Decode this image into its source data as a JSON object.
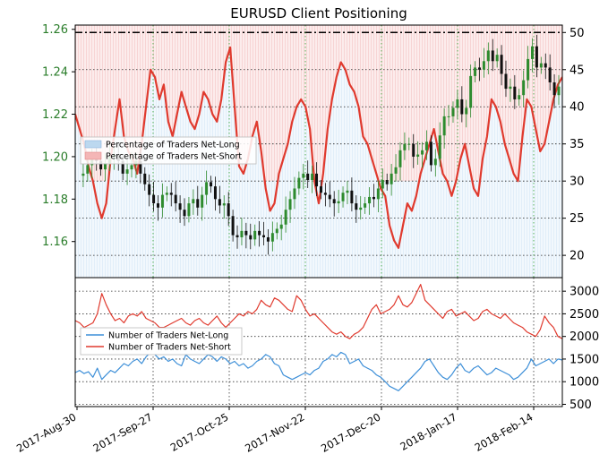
{
  "chart_data": [
    {
      "type": "line",
      "title": "EURUSD Client Positioning",
      "y_left_ticks": [
        "1.16",
        "1.18",
        "1.20",
        "1.22",
        "1.24",
        "1.26"
      ],
      "y_left_values": [
        1.16,
        1.18,
        1.2,
        1.22,
        1.24,
        1.26
      ],
      "ylim_left": [
        1.143,
        1.262
      ],
      "y_right_ticks": [
        "20",
        "25",
        "30",
        "35",
        "40",
        "45",
        "50"
      ],
      "y_right_values": [
        20,
        25,
        30,
        35,
        40,
        45,
        50
      ],
      "ylim_right": [
        17,
        51
      ],
      "x_tick_labels": [
        "2017-Aug-30",
        "2017-Sep-27",
        "2017-Oct-25",
        "2017-Nov-22",
        "2017-Dec-20",
        "2018-Jan-17",
        "2018-Feb-14"
      ],
      "legend": {
        "position": "center-left",
        "entries": [
          {
            "name": "Percentage of Traders Net-Long",
            "color": "#bcd8ef"
          },
          {
            "name": "Percentage of Traders Net-Short",
            "color": "#f4b6b6"
          }
        ]
      },
      "price_candles_approx": [
        1.191,
        1.192,
        1.196,
        1.2,
        1.198,
        1.194,
        1.197,
        1.2,
        1.201,
        1.198,
        1.192,
        1.194,
        1.196,
        1.198,
        1.192,
        1.187,
        1.182,
        1.178,
        1.176,
        1.182,
        1.183,
        1.182,
        1.178,
        1.175,
        1.172,
        1.178,
        1.18,
        1.176,
        1.182,
        1.188,
        1.186,
        1.18,
        1.177,
        1.178,
        1.172,
        1.163,
        1.162,
        1.165,
        1.163,
        1.161,
        1.165,
        1.163,
        1.162,
        1.16,
        1.164,
        1.166,
        1.168,
        1.175,
        1.18,
        1.185,
        1.19,
        1.192,
        1.189,
        1.192,
        1.186,
        1.183,
        1.182,
        1.18,
        1.178,
        1.179,
        1.183,
        1.184,
        1.178,
        1.175,
        1.176,
        1.178,
        1.181,
        1.18,
        1.185,
        1.189,
        1.187,
        1.192,
        1.195,
        1.203,
        1.206,
        1.206,
        1.2,
        1.201,
        1.203,
        1.207,
        1.196,
        1.199,
        1.21,
        1.219,
        1.219,
        1.223,
        1.227,
        1.22,
        1.223,
        1.238,
        1.242,
        1.241,
        1.245,
        1.25,
        1.245,
        1.248,
        1.239,
        1.232,
        1.233,
        1.227,
        1.229,
        1.236,
        1.246,
        1.252,
        1.242,
        1.244,
        1.242,
        1.235,
        1.229,
        1.233
      ],
      "pct_net_short_series": {
        "name": "Percentage of Traders Net-Short",
        "color": "#e03a2e",
        "values": [
          39,
          37,
          35,
          32,
          30,
          27,
          25,
          27,
          33,
          37,
          41,
          36,
          34,
          33,
          31,
          35,
          40,
          45,
          44,
          41,
          43,
          38,
          36,
          39,
          42,
          40,
          38,
          37,
          39,
          42,
          41,
          39,
          38,
          41,
          46,
          48,
          40,
          32,
          31,
          33,
          36,
          38,
          34,
          29,
          26,
          27,
          31,
          33,
          35,
          38,
          40,
          41,
          40,
          37,
          30,
          27,
          31,
          37,
          41,
          44,
          46,
          45,
          43,
          42,
          40,
          36,
          35,
          33,
          31,
          29,
          28,
          24,
          22,
          21,
          24,
          27,
          26,
          28,
          31,
          33,
          35,
          37,
          34,
          31,
          30,
          28,
          30,
          33,
          35,
          32,
          29,
          28,
          33,
          36,
          41,
          40,
          38,
          35,
          33,
          31,
          30,
          36,
          41,
          40,
          37,
          34,
          35,
          38,
          41,
          43,
          44
        ]
      }
    },
    {
      "type": "line",
      "y_ticks": [
        "500",
        "1000",
        "1500",
        "2000",
        "2500",
        "3000"
      ],
      "y_values": [
        500,
        1000,
        1500,
        2000,
        2500,
        3000
      ],
      "ylim": [
        450,
        3300
      ],
      "legend": {
        "position": "center-left",
        "entries": [
          {
            "name": "Number of Traders Net-Long",
            "color": "#3d8fd8"
          },
          {
            "name": "Number of Traders Net-Short",
            "color": "#e03a2e"
          }
        ]
      },
      "series": [
        {
          "name": "Number of Traders Net-Long",
          "color": "#3d8fd8",
          "values": [
            1200,
            1250,
            1180,
            1220,
            1100,
            1300,
            1050,
            1150,
            1250,
            1200,
            1300,
            1400,
            1350,
            1450,
            1500,
            1400,
            1550,
            1650,
            1600,
            1500,
            1550,
            1450,
            1500,
            1400,
            1350,
            1600,
            1500,
            1450,
            1400,
            1500,
            1600,
            1550,
            1450,
            1550,
            1500,
            1400,
            1450,
            1350,
            1400,
            1300,
            1350,
            1450,
            1500,
            1600,
            1550,
            1400,
            1350,
            1150,
            1100,
            1050,
            1100,
            1150,
            1200,
            1150,
            1250,
            1300,
            1450,
            1500,
            1600,
            1550,
            1650,
            1600,
            1400,
            1450,
            1500,
            1350,
            1300,
            1250,
            1150,
            1100,
            1000,
            900,
            850,
            800,
            900,
            1000,
            1100,
            1200,
            1300,
            1450,
            1500,
            1350,
            1200,
            1100,
            1050,
            1150,
            1300,
            1400,
            1250,
            1200,
            1300,
            1350,
            1250,
            1150,
            1200,
            1300,
            1250,
            1200,
            1150,
            1050,
            1100,
            1200,
            1300,
            1500,
            1350,
            1400,
            1450,
            1500,
            1400,
            1500,
            1480
          ]
        },
        {
          "name": "Number of Traders Net-Short",
          "color": "#e03a2e",
          "values": [
            2350,
            2300,
            2200,
            2250,
            2300,
            2500,
            2950,
            2700,
            2500,
            2350,
            2400,
            2300,
            2450,
            2500,
            2450,
            2550,
            2400,
            2350,
            2300,
            2200,
            2200,
            2250,
            2300,
            2350,
            2400,
            2300,
            2250,
            2350,
            2400,
            2300,
            2250,
            2350,
            2450,
            2300,
            2200,
            2300,
            2400,
            2500,
            2450,
            2550,
            2500,
            2600,
            2800,
            2700,
            2650,
            2850,
            2800,
            2700,
            2600,
            2550,
            2900,
            2800,
            2600,
            2450,
            2500,
            2400,
            2300,
            2200,
            2100,
            2050,
            2100,
            2000,
            1950,
            2050,
            2100,
            2200,
            2400,
            2600,
            2700,
            2500,
            2550,
            2600,
            2700,
            2900,
            2700,
            2650,
            2750,
            2950,
            3150,
            2800,
            2700,
            2600,
            2500,
            2400,
            2550,
            2600,
            2450,
            2500,
            2550,
            2450,
            2350,
            2400,
            2550,
            2600,
            2500,
            2450,
            2400,
            2500,
            2400,
            2300,
            2250,
            2200,
            2100,
            2050,
            2000,
            2150,
            2450,
            2300,
            2200,
            2000,
            1950
          ]
        }
      ]
    }
  ]
}
